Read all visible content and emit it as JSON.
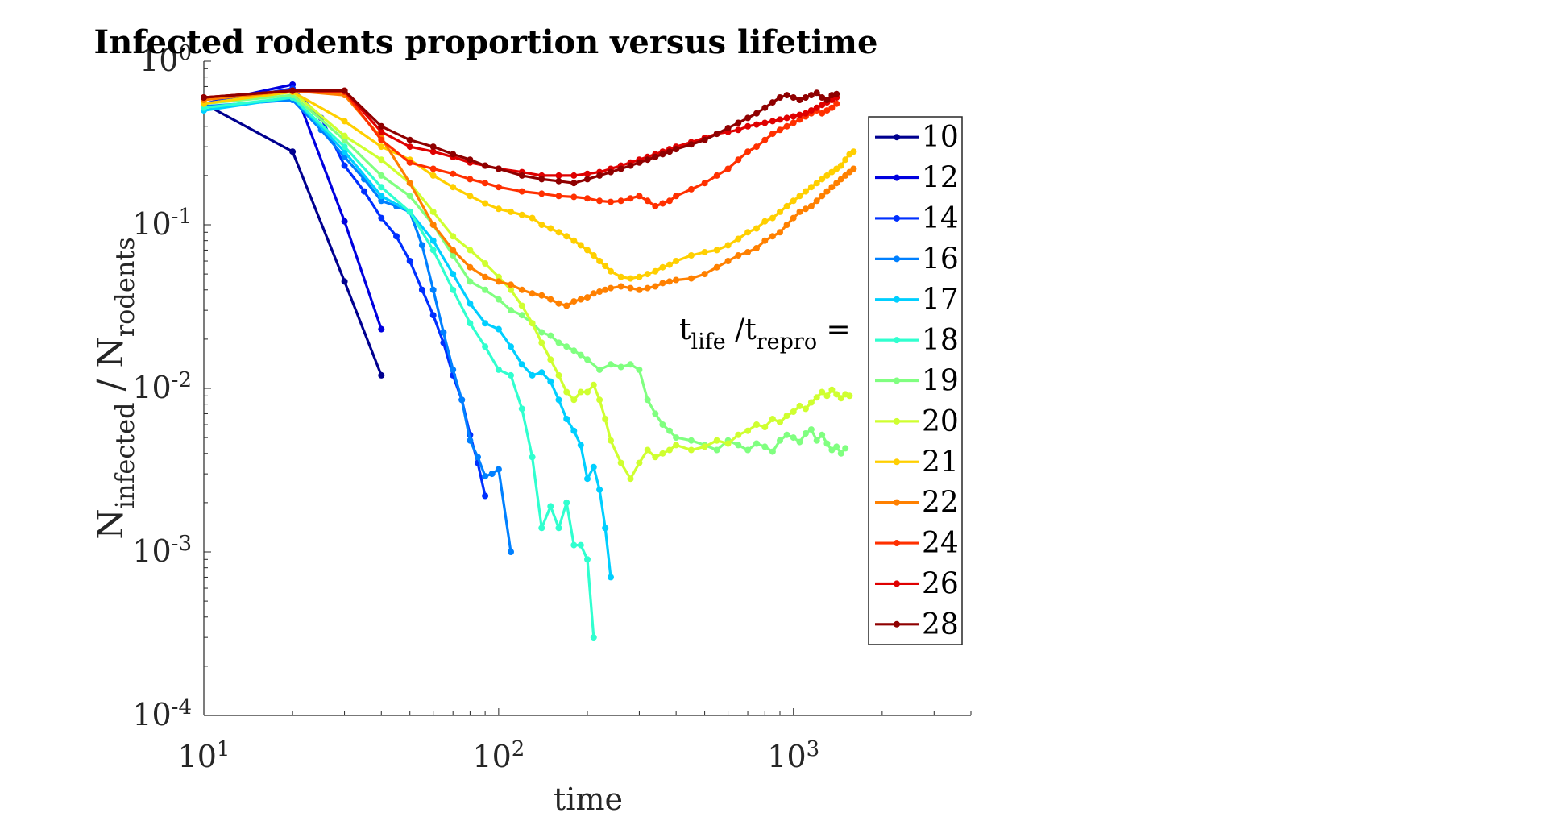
{
  "chart_data": {
    "type": "line",
    "title": "Infected rodents proportion versus lifetime",
    "xlabel": "time",
    "ylabel": {
      "main1": "N",
      "sub1": "infected",
      "sep": " / N",
      "sub2": "rodents"
    },
    "x_scale": "log",
    "y_scale": "log",
    "xlim": [
      10,
      4000
    ],
    "ylim": [
      0.0001,
      1
    ],
    "x_ticks": [
      {
        "base": "10",
        "exp": "1",
        "value": 10
      },
      {
        "base": "10",
        "exp": "2",
        "value": 100
      },
      {
        "base": "10",
        "exp": "3",
        "value": 1000
      }
    ],
    "y_ticks": [
      {
        "base": "10",
        "exp": "0",
        "value": 1
      },
      {
        "base": "10",
        "exp": "-1",
        "value": 0.1
      },
      {
        "base": "10",
        "exp": "-2",
        "value": 0.01
      },
      {
        "base": "10",
        "exp": "-3",
        "value": 0.001
      },
      {
        "base": "10",
        "exp": "-4",
        "value": 0.0001
      }
    ],
    "grid": false,
    "legend_position": "right",
    "legend_title": {
      "t1": "t",
      "sub1": "life",
      "sep": " /t",
      "sub2": "repro",
      "eq": " ="
    },
    "series": [
      {
        "name": "10",
        "color": "#00008f",
        "x": [
          10,
          20,
          30,
          40
        ],
        "y": [
          0.55,
          0.28,
          0.045,
          0.012
        ]
      },
      {
        "name": "12",
        "color": "#0000df",
        "x": [
          10,
          20,
          30,
          40
        ],
        "y": [
          0.55,
          0.72,
          0.105,
          0.023
        ]
      },
      {
        "name": "14",
        "color": "#0030ff",
        "x": [
          10,
          20,
          25,
          30,
          35,
          40,
          45,
          50,
          55,
          60,
          65,
          70,
          75,
          80,
          85,
          90
        ],
        "y": [
          0.55,
          0.68,
          0.45,
          0.23,
          0.16,
          0.11,
          0.085,
          0.06,
          0.04,
          0.028,
          0.019,
          0.012,
          0.0085,
          0.0052,
          0.0035,
          0.0022
        ]
      },
      {
        "name": "16",
        "color": "#0080ff",
        "x": [
          10,
          20,
          25,
          30,
          35,
          40,
          45,
          50,
          55,
          60,
          65,
          70,
          75,
          80,
          85,
          90,
          95,
          100,
          110
        ],
        "y": [
          0.53,
          0.58,
          0.38,
          0.26,
          0.19,
          0.14,
          0.13,
          0.12,
          0.075,
          0.04,
          0.022,
          0.013,
          0.0085,
          0.0048,
          0.0038,
          0.0029,
          0.003,
          0.0032,
          0.001
        ]
      },
      {
        "name": "17",
        "color": "#00cfff",
        "x": [
          10,
          20,
          30,
          40,
          50,
          60,
          70,
          80,
          90,
          100,
          110,
          120,
          130,
          140,
          150,
          160,
          170,
          180,
          190,
          200,
          210,
          220,
          230,
          240
        ],
        "y": [
          0.5,
          0.6,
          0.28,
          0.15,
          0.12,
          0.08,
          0.05,
          0.033,
          0.025,
          0.023,
          0.018,
          0.014,
          0.012,
          0.0125,
          0.011,
          0.0085,
          0.0065,
          0.0055,
          0.0045,
          0.0028,
          0.0033,
          0.0024,
          0.0014,
          0.0007
        ]
      },
      {
        "name": "18",
        "color": "#30ffcf",
        "x": [
          10,
          20,
          30,
          40,
          50,
          60,
          70,
          80,
          90,
          100,
          110,
          120,
          130,
          140,
          150,
          160,
          170,
          180,
          190,
          200,
          210
        ],
        "y": [
          0.52,
          0.6,
          0.3,
          0.17,
          0.12,
          0.07,
          0.04,
          0.025,
          0.018,
          0.013,
          0.012,
          0.0075,
          0.0038,
          0.0014,
          0.0019,
          0.0014,
          0.002,
          0.0011,
          0.0011,
          0.0009,
          0.0003
        ]
      },
      {
        "name": "19",
        "color": "#80ff80",
        "x": [
          10,
          20,
          30,
          40,
          50,
          60,
          70,
          80,
          90,
          100,
          110,
          120,
          130,
          140,
          150,
          160,
          170,
          180,
          190,
          200,
          220,
          240,
          260,
          280,
          300,
          320,
          340,
          360,
          380,
          400,
          450,
          500,
          550,
          600,
          650,
          700,
          750,
          800,
          850,
          900,
          950,
          1000,
          1050,
          1100,
          1150,
          1200,
          1250,
          1300,
          1350,
          1400,
          1450,
          1500
        ],
        "y": [
          0.55,
          0.62,
          0.33,
          0.2,
          0.15,
          0.1,
          0.065,
          0.045,
          0.04,
          0.035,
          0.03,
          0.028,
          0.025,
          0.022,
          0.021,
          0.019,
          0.018,
          0.017,
          0.016,
          0.015,
          0.013,
          0.014,
          0.0135,
          0.014,
          0.013,
          0.0085,
          0.007,
          0.006,
          0.0055,
          0.005,
          0.0048,
          0.0045,
          0.0042,
          0.0048,
          0.0045,
          0.0042,
          0.0046,
          0.0044,
          0.0041,
          0.0048,
          0.0052,
          0.005,
          0.0047,
          0.0053,
          0.0056,
          0.0048,
          0.0052,
          0.0046,
          0.0042,
          0.0044,
          0.004,
          0.0043
        ]
      },
      {
        "name": "20",
        "color": "#cfff30",
        "x": [
          10,
          20,
          30,
          40,
          50,
          60,
          70,
          80,
          90,
          100,
          110,
          120,
          130,
          140,
          150,
          160,
          170,
          180,
          190,
          200,
          210,
          220,
          230,
          240,
          260,
          280,
          300,
          320,
          340,
          360,
          380,
          400,
          450,
          500,
          550,
          600,
          650,
          700,
          750,
          800,
          850,
          900,
          950,
          1000,
          1050,
          1100,
          1150,
          1200,
          1250,
          1300,
          1350,
          1400,
          1450,
          1500,
          1550
        ],
        "y": [
          0.55,
          0.65,
          0.35,
          0.25,
          0.18,
          0.12,
          0.085,
          0.07,
          0.058,
          0.048,
          0.04,
          0.032,
          0.025,
          0.019,
          0.015,
          0.012,
          0.0095,
          0.0085,
          0.0095,
          0.0095,
          0.0105,
          0.0085,
          0.0065,
          0.0048,
          0.0035,
          0.0028,
          0.0035,
          0.0042,
          0.0038,
          0.004,
          0.0042,
          0.0045,
          0.0042,
          0.0044,
          0.0048,
          0.0046,
          0.0052,
          0.0055,
          0.006,
          0.0058,
          0.0065,
          0.0062,
          0.0068,
          0.0072,
          0.0078,
          0.0075,
          0.0082,
          0.0088,
          0.0095,
          0.009,
          0.0098,
          0.0092,
          0.0087,
          0.0092,
          0.009
        ]
      },
      {
        "name": "21",
        "color": "#ffcf00",
        "x": [
          10,
          20,
          30,
          40,
          50,
          60,
          70,
          80,
          90,
          100,
          110,
          120,
          130,
          140,
          150,
          160,
          170,
          180,
          190,
          200,
          210,
          220,
          230,
          240,
          260,
          280,
          300,
          320,
          340,
          360,
          380,
          400,
          450,
          500,
          550,
          600,
          650,
          700,
          750,
          800,
          850,
          900,
          950,
          1000,
          1050,
          1100,
          1150,
          1200,
          1250,
          1300,
          1350,
          1400,
          1450,
          1500,
          1550,
          1600
        ],
        "y": [
          0.55,
          0.65,
          0.43,
          0.3,
          0.25,
          0.2,
          0.17,
          0.15,
          0.135,
          0.125,
          0.12,
          0.115,
          0.11,
          0.1,
          0.095,
          0.09,
          0.085,
          0.08,
          0.075,
          0.07,
          0.065,
          0.06,
          0.056,
          0.052,
          0.048,
          0.047,
          0.048,
          0.05,
          0.052,
          0.055,
          0.057,
          0.06,
          0.065,
          0.068,
          0.07,
          0.075,
          0.082,
          0.09,
          0.095,
          0.105,
          0.11,
          0.12,
          0.13,
          0.14,
          0.15,
          0.16,
          0.17,
          0.18,
          0.19,
          0.2,
          0.21,
          0.22,
          0.23,
          0.25,
          0.27,
          0.28
        ]
      },
      {
        "name": "22",
        "color": "#ff8000",
        "x": [
          10,
          20,
          30,
          40,
          50,
          60,
          70,
          80,
          90,
          100,
          110,
          120,
          130,
          140,
          150,
          160,
          170,
          180,
          190,
          200,
          210,
          220,
          230,
          240,
          260,
          280,
          300,
          320,
          340,
          360,
          380,
          400,
          450,
          500,
          550,
          600,
          650,
          700,
          750,
          800,
          850,
          900,
          950,
          1000,
          1050,
          1100,
          1150,
          1200,
          1250,
          1300,
          1350,
          1400,
          1450,
          1500,
          1550,
          1600
        ],
        "y": [
          0.58,
          0.66,
          0.62,
          0.34,
          0.18,
          0.1,
          0.07,
          0.055,
          0.048,
          0.045,
          0.043,
          0.04,
          0.038,
          0.037,
          0.035,
          0.033,
          0.032,
          0.034,
          0.035,
          0.036,
          0.038,
          0.039,
          0.04,
          0.041,
          0.042,
          0.041,
          0.04,
          0.041,
          0.042,
          0.044,
          0.045,
          0.046,
          0.047,
          0.05,
          0.055,
          0.06,
          0.065,
          0.068,
          0.072,
          0.08,
          0.085,
          0.09,
          0.1,
          0.11,
          0.12,
          0.125,
          0.13,
          0.14,
          0.15,
          0.16,
          0.17,
          0.18,
          0.19,
          0.2,
          0.21,
          0.22
        ]
      },
      {
        "name": "24",
        "color": "#ff3000",
        "x": [
          10,
          20,
          30,
          40,
          50,
          60,
          70,
          80,
          90,
          100,
          120,
          140,
          160,
          180,
          200,
          220,
          240,
          260,
          280,
          300,
          320,
          340,
          360,
          380,
          400,
          450,
          500,
          550,
          600,
          650,
          700,
          750,
          800,
          850,
          900,
          950,
          1000,
          1050,
          1100,
          1150,
          1200,
          1250,
          1300,
          1350,
          1400
        ],
        "y": [
          0.6,
          0.66,
          0.65,
          0.33,
          0.24,
          0.22,
          0.205,
          0.19,
          0.18,
          0.17,
          0.16,
          0.155,
          0.15,
          0.148,
          0.145,
          0.14,
          0.138,
          0.14,
          0.145,
          0.15,
          0.14,
          0.13,
          0.135,
          0.14,
          0.15,
          0.165,
          0.18,
          0.2,
          0.22,
          0.25,
          0.28,
          0.3,
          0.33,
          0.36,
          0.38,
          0.4,
          0.42,
          0.44,
          0.46,
          0.48,
          0.5,
          0.48,
          0.5,
          0.52,
          0.55
        ]
      },
      {
        "name": "26",
        "color": "#df0000",
        "x": [
          10,
          20,
          30,
          40,
          50,
          60,
          70,
          80,
          90,
          100,
          120,
          140,
          160,
          180,
          200,
          220,
          240,
          260,
          280,
          300,
          320,
          340,
          360,
          380,
          400,
          450,
          500,
          550,
          600,
          650,
          700,
          750,
          800,
          850,
          900,
          950,
          1000,
          1050,
          1100,
          1150,
          1200,
          1250,
          1300,
          1350,
          1400
        ],
        "y": [
          0.6,
          0.66,
          0.66,
          0.37,
          0.3,
          0.28,
          0.26,
          0.24,
          0.23,
          0.22,
          0.21,
          0.2,
          0.2,
          0.2,
          0.205,
          0.21,
          0.22,
          0.23,
          0.24,
          0.25,
          0.26,
          0.27,
          0.28,
          0.29,
          0.3,
          0.32,
          0.34,
          0.36,
          0.37,
          0.38,
          0.4,
          0.41,
          0.42,
          0.43,
          0.44,
          0.45,
          0.46,
          0.47,
          0.48,
          0.5,
          0.52,
          0.54,
          0.56,
          0.58,
          0.6
        ]
      },
      {
        "name": "28",
        "color": "#8f0000",
        "x": [
          10,
          20,
          30,
          40,
          50,
          60,
          70,
          80,
          90,
          100,
          120,
          140,
          160,
          180,
          200,
          220,
          240,
          260,
          280,
          300,
          320,
          340,
          360,
          380,
          400,
          450,
          500,
          550,
          600,
          650,
          700,
          750,
          800,
          850,
          900,
          950,
          1000,
          1050,
          1100,
          1150,
          1200,
          1250,
          1300,
          1350,
          1400
        ],
        "y": [
          0.6,
          0.66,
          0.66,
          0.4,
          0.33,
          0.3,
          0.27,
          0.25,
          0.23,
          0.22,
          0.2,
          0.19,
          0.185,
          0.18,
          0.19,
          0.2,
          0.21,
          0.22,
          0.23,
          0.24,
          0.25,
          0.26,
          0.27,
          0.28,
          0.29,
          0.31,
          0.33,
          0.36,
          0.39,
          0.42,
          0.45,
          0.48,
          0.52,
          0.56,
          0.6,
          0.62,
          0.6,
          0.58,
          0.6,
          0.62,
          0.64,
          0.6,
          0.58,
          0.62,
          0.63
        ]
      }
    ]
  }
}
